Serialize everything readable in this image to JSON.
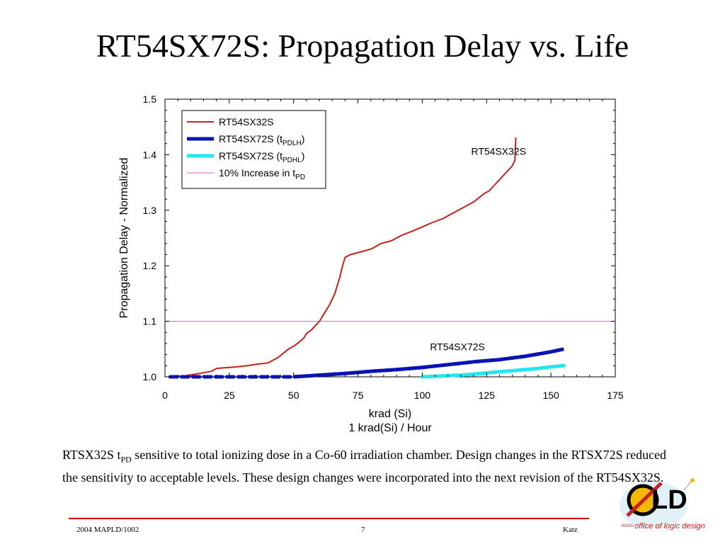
{
  "slide": {
    "title": "RT54SX72S: Propagation Delay vs. Life",
    "caption": {
      "t1": "RTSX32S t",
      "sub": "PD",
      "t2": " sensitive to total ionizing dose in a Co-60 irradiation chamber.  Design changes in the RTSX72S reduced the sensitivity to acceptable levels.  These design changes were incorporated into the next revision of the RT54SX32S."
    },
    "footer": {
      "left": "2004 MAPLD/1002",
      "center": "7",
      "right": "Katz"
    },
    "logo": {
      "text": "OLD",
      "subtext": "office of logic design",
      "small": "NASA"
    }
  },
  "chart_data": {
    "type": "line",
    "xlabel": "krad (Si)",
    "xlabel2": "1 krad(Si) / Hour",
    "ylabel": "Propagation Delay - Normalized",
    "xlim": [
      0,
      175
    ],
    "ylim": [
      1.0,
      1.5
    ],
    "xticks": [
      0,
      25,
      50,
      75,
      100,
      125,
      150,
      175
    ],
    "yticks": [
      1.0,
      1.1,
      1.2,
      1.3,
      1.4,
      1.5
    ],
    "ytick_labels": [
      "1.0",
      "1.1",
      "1.2",
      "1.3",
      "1.4",
      "1.5"
    ],
    "grid": false,
    "legend_position": "top-left",
    "legend": [
      {
        "label": "RT54SX32S",
        "sub": "",
        "suffix": "",
        "color": "#c8201e"
      },
      {
        "label": "RT54SX72S (t",
        "sub": "PDLH",
        "suffix": ")",
        "color": "#0a14b4"
      },
      {
        "label": "RT54SX72S (t",
        "sub": "PDHL",
        "suffix": ")",
        "color": "#22e6f0"
      },
      {
        "label": "10% Increase in t",
        "sub": "PD",
        "suffix": "",
        "color": "#cc66cc"
      }
    ],
    "annotations": [
      {
        "text": "RT54SX32S",
        "x": 119,
        "y": 1.4
      },
      {
        "text": "RT54SX72S",
        "x": 103,
        "y": 1.048
      }
    ],
    "series": [
      {
        "name": "RT54SX32S",
        "color": "#c8201e",
        "x": [
          2,
          8,
          12,
          18,
          20,
          22,
          25,
          28,
          32,
          36,
          40,
          42,
          44,
          48,
          50,
          52,
          54,
          55,
          57,
          58,
          60,
          62,
          64,
          66,
          67,
          68,
          69,
          70,
          72,
          76,
          80,
          84,
          88,
          92,
          96,
          100,
          104,
          108,
          110,
          112,
          116,
          120,
          124,
          126,
          128,
          130,
          132,
          134,
          135,
          136,
          136.3
        ],
        "y": [
          1.0,
          1.002,
          1.005,
          1.01,
          1.015,
          1.016,
          1.017,
          1.018,
          1.02,
          1.023,
          1.025,
          1.03,
          1.035,
          1.05,
          1.055,
          1.062,
          1.07,
          1.078,
          1.085,
          1.09,
          1.1,
          1.115,
          1.13,
          1.15,
          1.165,
          1.18,
          1.2,
          1.215,
          1.22,
          1.225,
          1.23,
          1.24,
          1.245,
          1.255,
          1.262,
          1.27,
          1.278,
          1.285,
          1.29,
          1.295,
          1.305,
          1.315,
          1.33,
          1.335,
          1.345,
          1.355,
          1.365,
          1.375,
          1.38,
          1.39,
          1.43
        ]
      },
      {
        "name": "RT54SX72S (tPDLH)",
        "color": "#0a14b4",
        "x": [
          2,
          10,
          20,
          30,
          40,
          50,
          60,
          70,
          80,
          90,
          100,
          110,
          120,
          130,
          140,
          150,
          155
        ],
        "y": [
          1.0,
          1.0,
          1.0,
          1.0,
          1.0,
          1.0,
          1.003,
          1.006,
          1.01,
          1.013,
          1.017,
          1.022,
          1.027,
          1.031,
          1.037,
          1.045,
          1.05
        ]
      },
      {
        "name": "RT54SX72S (tPDHL)",
        "color": "#22e6f0",
        "x": [
          100,
          105,
          110,
          115,
          120,
          125,
          130,
          135,
          140,
          145,
          150,
          155
        ],
        "y": [
          1.0,
          1.001,
          1.002,
          1.003,
          1.005,
          1.007,
          1.009,
          1.011,
          1.013,
          1.015,
          1.018,
          1.02
        ]
      },
      {
        "name": "10% Increase in tPD",
        "color": "#cc66cc",
        "x": [
          0,
          175
        ],
        "y": [
          1.1,
          1.1
        ]
      }
    ]
  }
}
